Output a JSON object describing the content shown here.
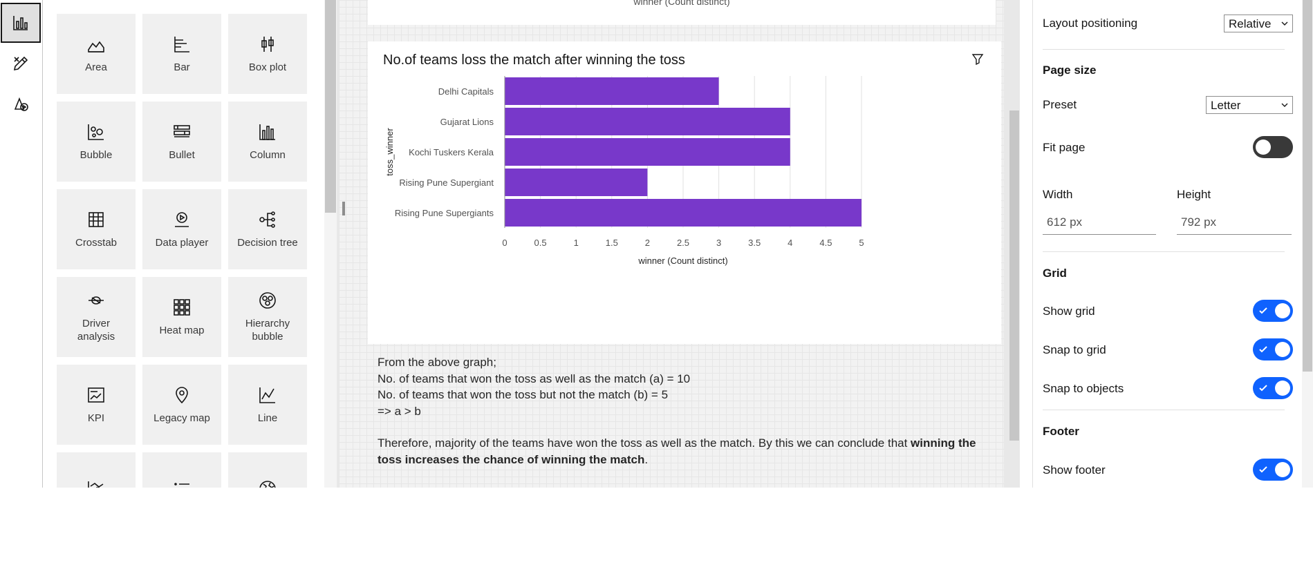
{
  "rail": [
    {
      "name": "visualizations-icon",
      "active": true
    },
    {
      "name": "format-icon",
      "active": false
    },
    {
      "name": "properties-icon",
      "active": false
    }
  ],
  "viz_tiles": [
    {
      "label": "Area",
      "icon": "area-chart-icon"
    },
    {
      "label": "Bar",
      "icon": "bar-chart-icon"
    },
    {
      "label": "Box plot",
      "icon": "box-plot-icon"
    },
    {
      "label": "Bubble",
      "icon": "bubble-chart-icon"
    },
    {
      "label": "Bullet",
      "icon": "bullet-chart-icon"
    },
    {
      "label": "Column",
      "icon": "column-chart-icon"
    },
    {
      "label": "Crosstab",
      "icon": "crosstab-icon"
    },
    {
      "label": "Data player",
      "icon": "data-player-icon"
    },
    {
      "label": "Decision tree",
      "icon": "decision-tree-icon"
    },
    {
      "label": "Driver\nanalysis",
      "icon": "driver-analysis-icon"
    },
    {
      "label": "Heat map",
      "icon": "heat-map-icon"
    },
    {
      "label": "Hierarchy\nbubble",
      "icon": "hierarchy-bubble-icon"
    },
    {
      "label": "KPI",
      "icon": "kpi-icon"
    },
    {
      "label": "Legacy map",
      "icon": "legacy-map-icon"
    },
    {
      "label": "Line",
      "icon": "line-chart-icon"
    },
    {
      "label": "",
      "icon": "line-column-icon"
    },
    {
      "label": "",
      "icon": "list-icon"
    },
    {
      "label": "",
      "icon": "map-icon"
    }
  ],
  "canvas": {
    "prev_card_axis_label": "winner (Count distinct)",
    "text_lines": [
      "From the above graph;",
      "No. of teams that won the toss as well as the match (a) = 10",
      "No. of teams that won the toss but not the match (b) = 5",
      "=> a > b"
    ],
    "conclusion_plain": "Therefore, majority of the teams have won the toss as well as the match. By this we can conclude that ",
    "conclusion_bold": "winning the toss increases the chance of winning the match",
    "conclusion_end": "."
  },
  "chart_data": {
    "type": "bar",
    "orientation": "horizontal",
    "title": "No.of teams loss the match after winning the toss",
    "categories": [
      "Delhi Capitals",
      "Gujarat Lions",
      "Kochi Tuskers Kerala",
      "Rising Pune Supergiant",
      "Rising Pune Supergiants"
    ],
    "values": [
      3,
      4,
      4,
      2,
      5
    ],
    "xlabel": "winner (Count distinct)",
    "ylabel": "toss_winner",
    "xlim": [
      0,
      5
    ],
    "xticks": [
      "0",
      "0.5",
      "1",
      "1.5",
      "2",
      "2.5",
      "3",
      "3.5",
      "4",
      "4.5",
      "5"
    ],
    "grid": true,
    "bar_color": "#7838ca"
  },
  "props": {
    "layout_positioning_label": "Layout positioning",
    "layout_positioning_value": "Relative",
    "page_size_title": "Page size",
    "preset_label": "Preset",
    "preset_value": "Letter",
    "fit_page_label": "Fit page",
    "fit_page_on": false,
    "width_label": "Width",
    "width_value": "612 px",
    "height_label": "Height",
    "height_value": "792 px",
    "grid_title": "Grid",
    "show_grid_label": "Show grid",
    "show_grid_on": true,
    "snap_grid_label": "Snap to grid",
    "snap_grid_on": true,
    "snap_objects_label": "Snap to objects",
    "snap_objects_on": true,
    "footer_title": "Footer",
    "show_footer_label": "Show footer",
    "show_footer_on": true
  },
  "colors": {
    "accent": "#0f62fe",
    "bar": "#7838ca",
    "toggle_off": "#393939"
  }
}
